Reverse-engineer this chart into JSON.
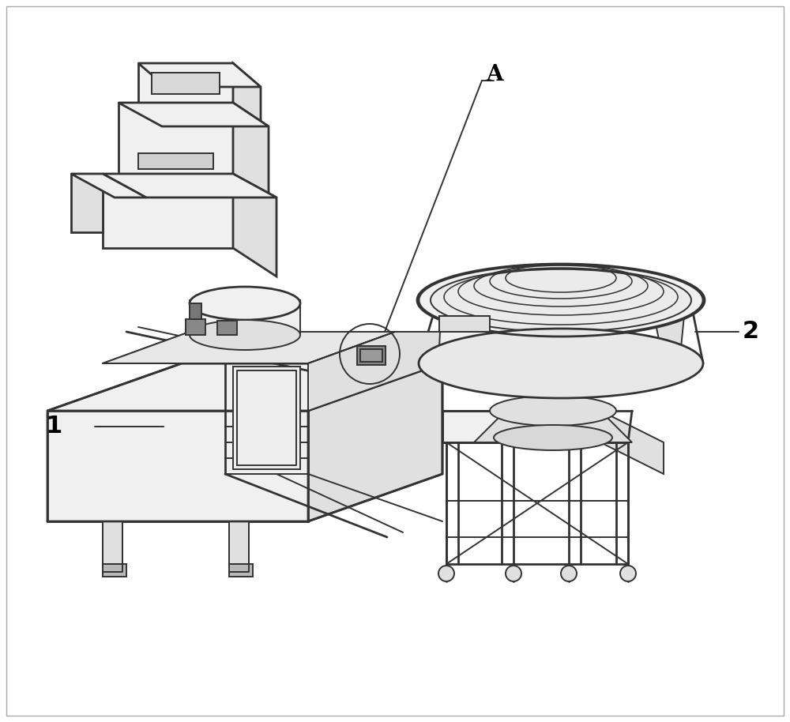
{
  "background_color": "#ffffff",
  "lc": "#333333",
  "lc_dark": "#1a1a1a",
  "lw": 1.4,
  "lw_thick": 2.0,
  "lw_thin": 0.8,
  "face_light": "#f0f0f0",
  "face_mid": "#e0e0e0",
  "face_dark": "#cccccc",
  "face_darker": "#b8b8b8",
  "fig_width": 10.0,
  "fig_height": 9.14,
  "label_1": "1",
  "label_2": "2",
  "label_A": "A"
}
